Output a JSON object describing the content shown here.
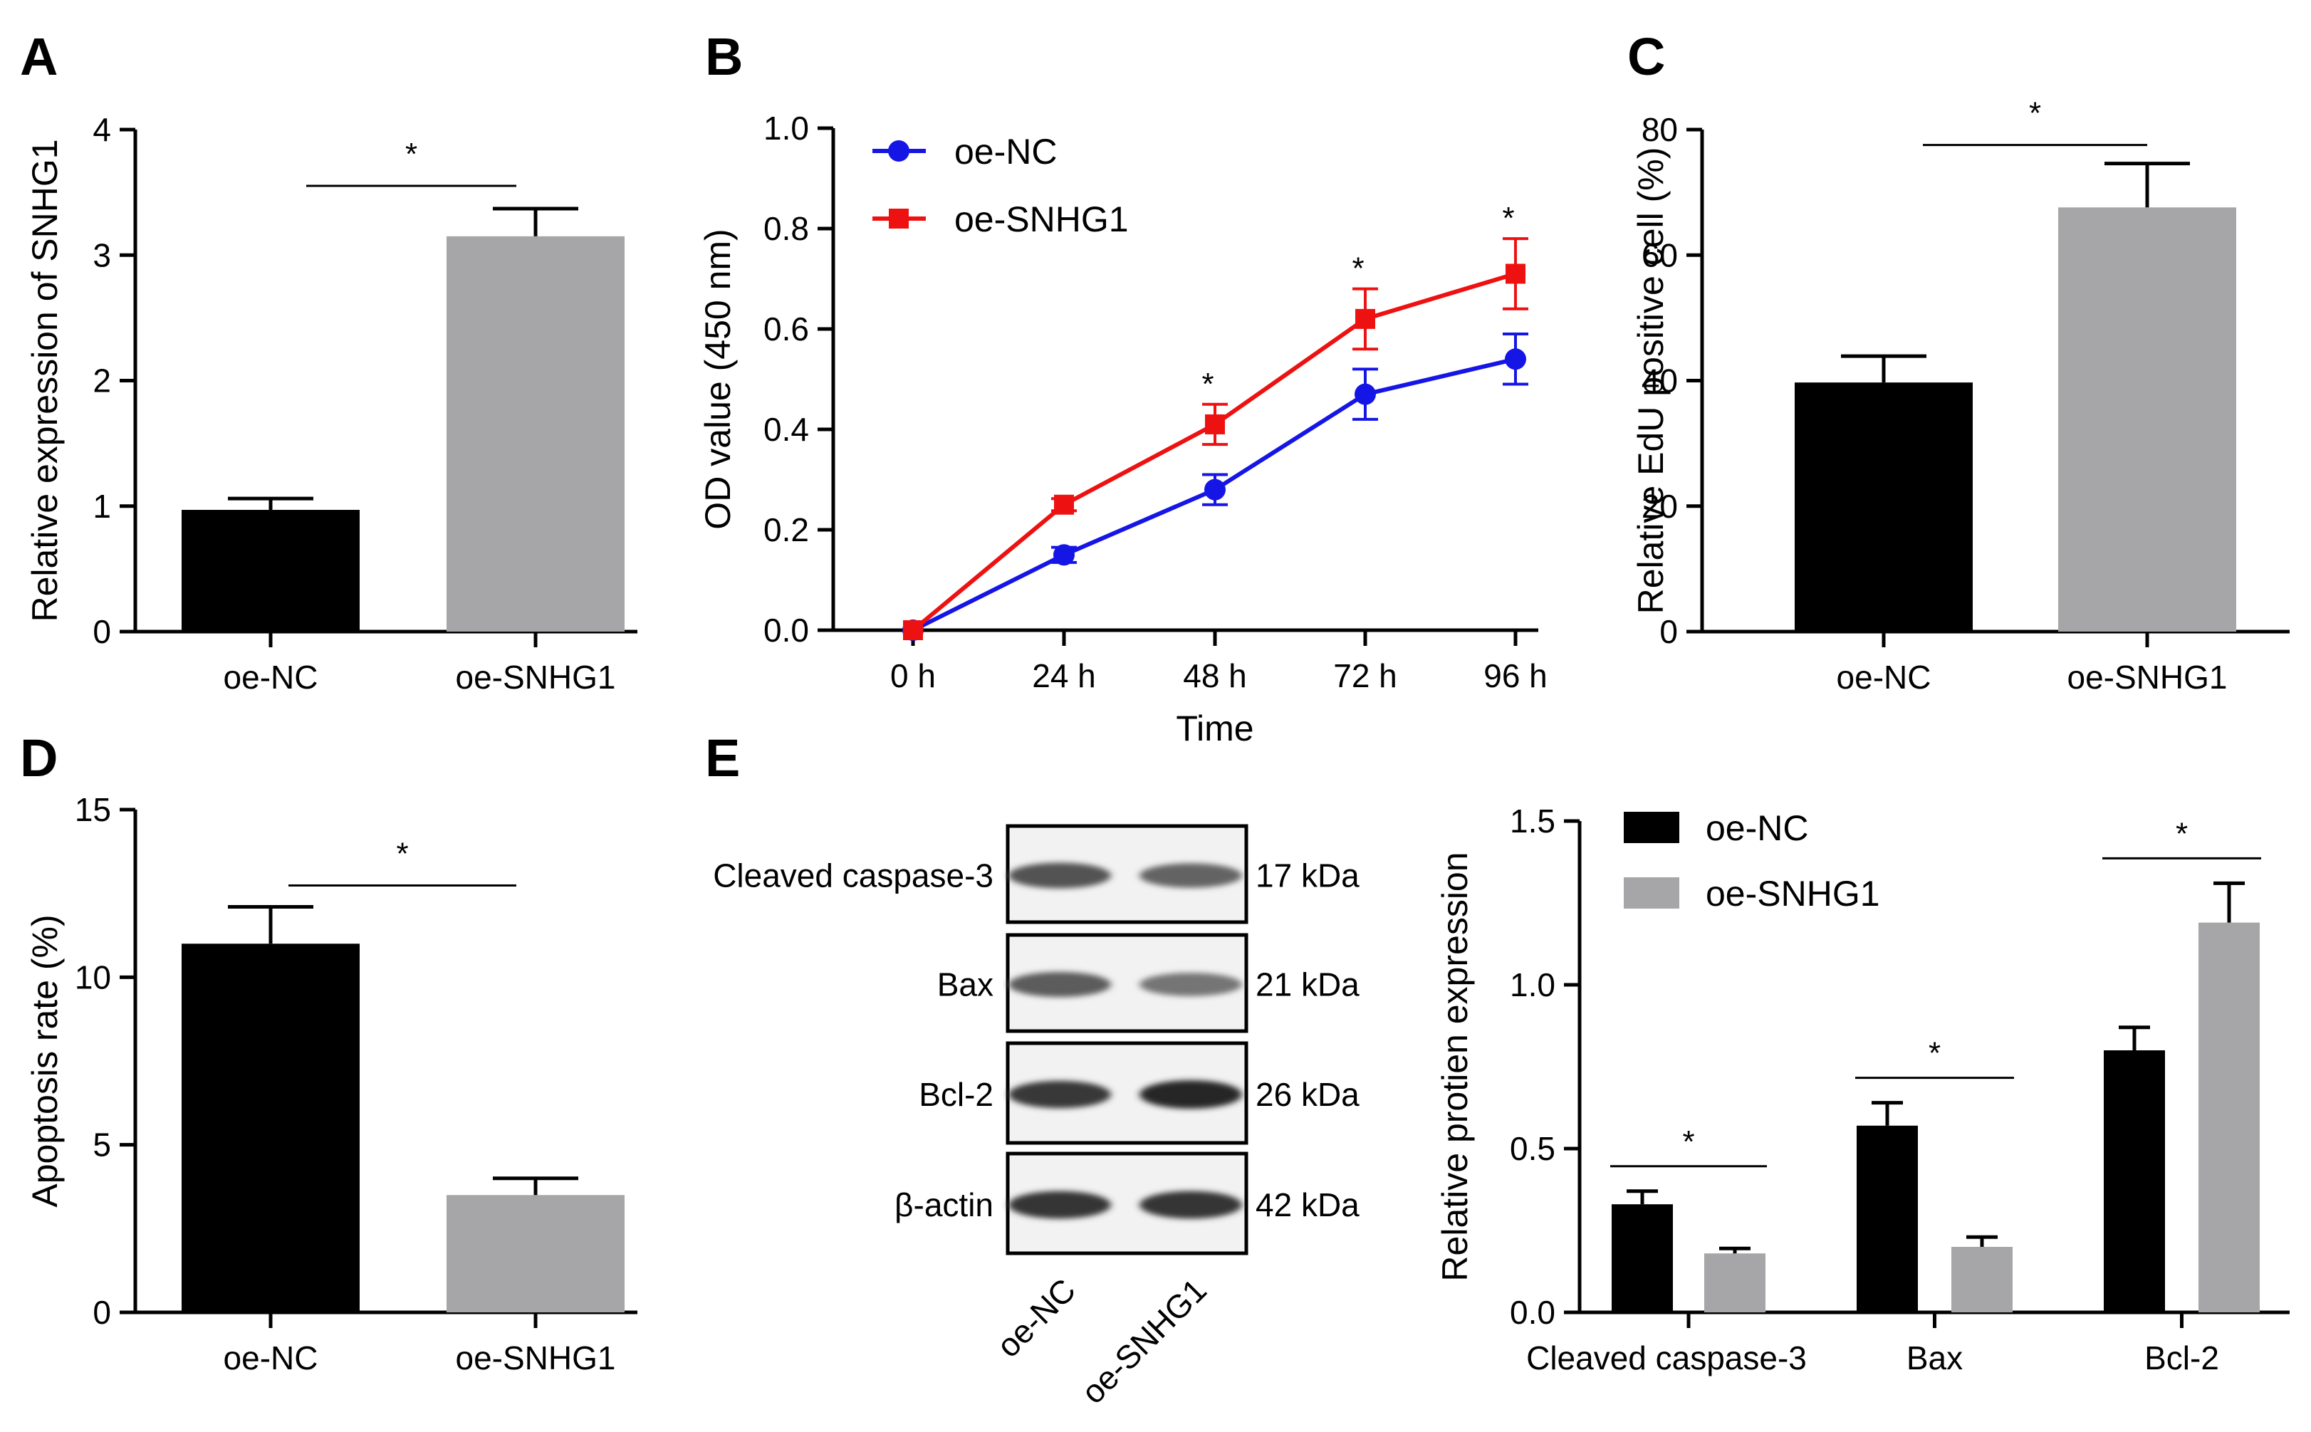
{
  "colors": {
    "oe_nc": "#000000",
    "oe_snhg1": "#a6a6a8",
    "line_nc": "#1515e6",
    "line_snhg1": "#ee1111"
  },
  "chart_data": [
    {
      "panel": "A",
      "type": "bar",
      "ylabel": "Relative expression of SNHG1",
      "categories": [
        "oe-NC",
        "oe-SNHG1"
      ],
      "values": [
        0.97,
        3.15
      ],
      "errors": [
        0.09,
        0.22
      ],
      "ylim": [
        0,
        4
      ],
      "yticks": [
        "0",
        "1",
        "2",
        "3",
        "4"
      ],
      "significance": "*"
    },
    {
      "panel": "B",
      "type": "line",
      "xlabel": "Time",
      "ylabel": "OD value (450 nm)",
      "x": [
        "0 h",
        "24 h",
        "48 h",
        "72 h",
        "96 h"
      ],
      "ylim": [
        0,
        1.0
      ],
      "yticks": [
        "0.0",
        "0.2",
        "0.4",
        "0.6",
        "0.8",
        "1.0"
      ],
      "series": [
        {
          "name": "oe-NC",
          "values": [
            0.0,
            0.15,
            0.28,
            0.47,
            0.54
          ],
          "errors": [
            0.0,
            0.015,
            0.03,
            0.05,
            0.05
          ]
        },
        {
          "name": "oe-SNHG1",
          "values": [
            0.0,
            0.25,
            0.41,
            0.62,
            0.71
          ],
          "errors": [
            0.0,
            0.012,
            0.04,
            0.06,
            0.07
          ]
        }
      ],
      "significance": [
        "",
        "",
        "*",
        "*",
        "*"
      ],
      "legend": "top-left"
    },
    {
      "panel": "C",
      "type": "bar",
      "ylabel": "Relative EdU positive cell (%)",
      "categories": [
        "oe-NC",
        "oe-SNHG1"
      ],
      "values": [
        39.7,
        67.6
      ],
      "errors": [
        4.2,
        7.0
      ],
      "ylim": [
        0,
        80
      ],
      "yticks": [
        "0",
        "20",
        "40",
        "60",
        "80"
      ],
      "significance": "*"
    },
    {
      "panel": "D",
      "type": "bar",
      "ylabel": "Apoptosis rate (%)",
      "categories": [
        "oe-NC",
        "oe-SNHG1"
      ],
      "values": [
        11.0,
        3.5
      ],
      "errors": [
        1.1,
        0.5
      ],
      "ylim": [
        0,
        15
      ],
      "yticks": [
        "0",
        "5",
        "10",
        "15"
      ],
      "significance": "*"
    },
    {
      "panel": "E",
      "type": "bar",
      "ylabel": "Relative protien expression",
      "categories": [
        "Cleaved caspase-3",
        "Bax",
        "Bcl-2"
      ],
      "series": [
        {
          "name": "oe-NC",
          "values": [
            0.33,
            0.57,
            0.8
          ],
          "errors": [
            0.04,
            0.07,
            0.07
          ]
        },
        {
          "name": "oe-SNHG1",
          "values": [
            0.18,
            0.2,
            1.19
          ],
          "errors": [
            0.015,
            0.03,
            0.12
          ]
        }
      ],
      "ylim": [
        0,
        1.5
      ],
      "yticks": [
        "0.0",
        "0.5",
        "1.0",
        "1.5"
      ],
      "significance": [
        "*",
        "*",
        "*"
      ],
      "legend": "top-left"
    }
  ],
  "western_blot": {
    "panel": "E",
    "rows": [
      {
        "protein": "Cleaved caspase-3",
        "size": "17 kDa",
        "intensity": [
          0.75,
          0.65
        ]
      },
      {
        "protein": "Bax",
        "size": "21 kDa",
        "intensity": [
          0.7,
          0.55
        ]
      },
      {
        "protein": "Bcl-2",
        "size": "26 kDa",
        "intensity": [
          0.9,
          1.0
        ]
      },
      {
        "protein": "β-actin",
        "size": "42 kDa",
        "intensity": [
          0.92,
          0.92
        ]
      }
    ],
    "lanes": [
      "oe-NC",
      "oe-SNHG1"
    ]
  }
}
